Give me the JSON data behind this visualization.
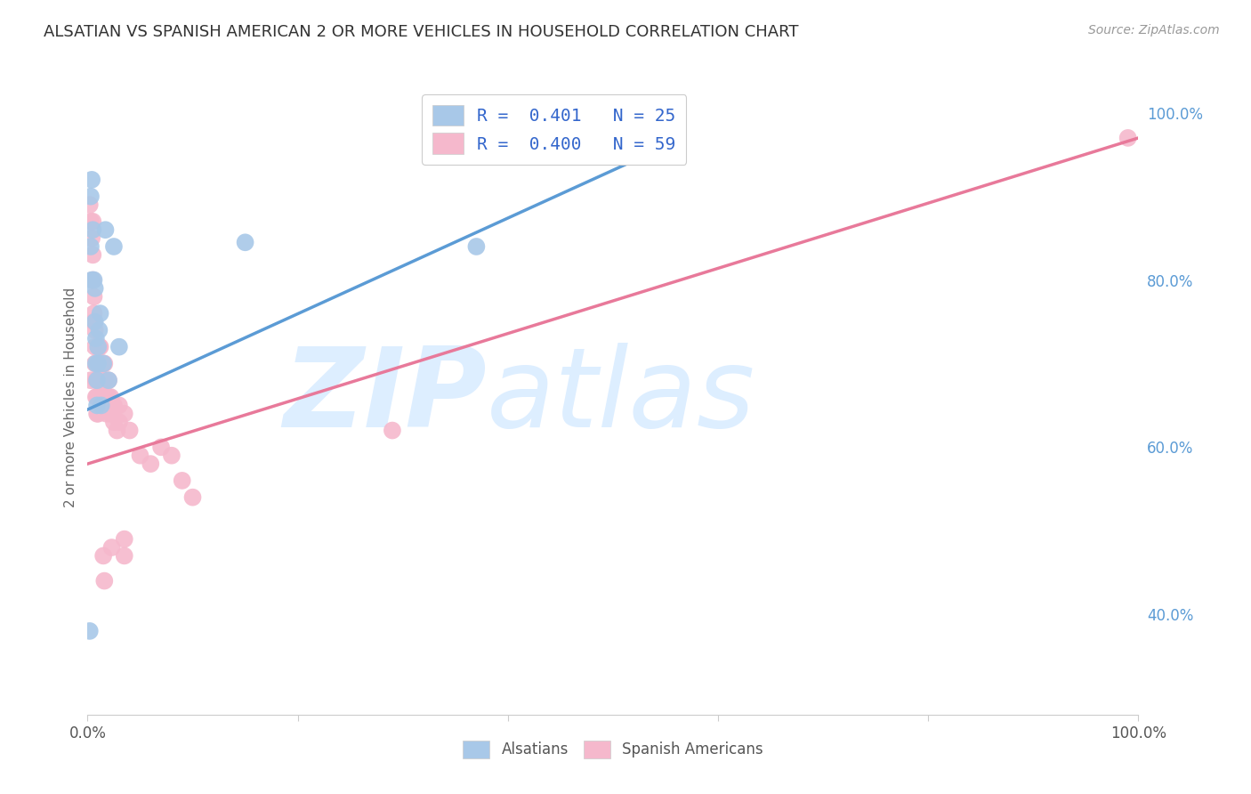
{
  "title": "ALSATIAN VS SPANISH AMERICAN 2 OR MORE VEHICLES IN HOUSEHOLD CORRELATION CHART",
  "source": "Source: ZipAtlas.com",
  "ylabel": "2 or more Vehicles in Household",
  "xlim": [
    0,
    1
  ],
  "ylim": [
    0.28,
    1.04
  ],
  "xticklabels": [
    "0.0%",
    "",
    "",
    "",
    "",
    "100.0%"
  ],
  "yticklabels_right": [
    "40.0%",
    "60.0%",
    "80.0%",
    "100.0%"
  ],
  "yticks_right": [
    0.4,
    0.6,
    0.8,
    1.0
  ],
  "legend_entries": [
    {
      "label": "R =  0.401   N = 25"
    },
    {
      "label": "R =  0.400   N = 59"
    }
  ],
  "legend_bottom": [
    "Alsatians",
    "Spanish Americans"
  ],
  "blue_color": "#5b9bd5",
  "pink_color": "#e8799a",
  "blue_scatter_color": "#a8c8e8",
  "pink_scatter_color": "#f5b8cc",
  "watermark_zip": "ZIP",
  "watermark_atlas": "atlas",
  "watermark_color": "#ddeeff",
  "grid_color": "#dddddd",
  "blue_scatter_x": [
    0.003,
    0.004,
    0.005,
    0.006,
    0.007,
    0.007,
    0.008,
    0.008,
    0.009,
    0.009,
    0.01,
    0.01,
    0.011,
    0.012,
    0.013,
    0.015,
    0.017,
    0.02,
    0.025,
    0.03,
    0.003,
    0.004,
    0.15,
    0.37,
    0.002
  ],
  "blue_scatter_y": [
    0.9,
    0.92,
    0.86,
    0.8,
    0.79,
    0.75,
    0.73,
    0.7,
    0.68,
    0.65,
    0.7,
    0.72,
    0.74,
    0.76,
    0.65,
    0.7,
    0.86,
    0.68,
    0.84,
    0.72,
    0.84,
    0.8,
    0.845,
    0.84,
    0.38
  ],
  "pink_scatter_x": [
    0.002,
    0.003,
    0.004,
    0.005,
    0.005,
    0.005,
    0.006,
    0.006,
    0.007,
    0.007,
    0.007,
    0.008,
    0.008,
    0.009,
    0.009,
    0.01,
    0.01,
    0.01,
    0.011,
    0.011,
    0.012,
    0.012,
    0.013,
    0.013,
    0.014,
    0.014,
    0.015,
    0.015,
    0.016,
    0.016,
    0.017,
    0.018,
    0.019,
    0.02,
    0.02,
    0.022,
    0.022,
    0.025,
    0.025,
    0.028,
    0.03,
    0.03,
    0.035,
    0.04,
    0.05,
    0.06,
    0.07,
    0.08,
    0.09,
    0.1,
    0.003,
    0.006,
    0.015,
    0.016,
    0.023,
    0.29,
    0.035,
    0.035,
    0.99
  ],
  "pink_scatter_y": [
    0.89,
    0.87,
    0.85,
    0.87,
    0.83,
    0.8,
    0.78,
    0.76,
    0.74,
    0.72,
    0.7,
    0.68,
    0.66,
    0.64,
    0.66,
    0.64,
    0.66,
    0.68,
    0.7,
    0.72,
    0.7,
    0.72,
    0.68,
    0.66,
    0.68,
    0.7,
    0.68,
    0.7,
    0.68,
    0.7,
    0.66,
    0.64,
    0.66,
    0.66,
    0.68,
    0.66,
    0.64,
    0.65,
    0.63,
    0.62,
    0.63,
    0.65,
    0.64,
    0.62,
    0.59,
    0.58,
    0.6,
    0.59,
    0.56,
    0.54,
    0.68,
    0.75,
    0.47,
    0.44,
    0.48,
    0.62,
    0.49,
    0.47,
    0.97
  ],
  "blue_line_x": [
    0.0,
    0.55
  ],
  "blue_line_y": [
    0.645,
    0.96
  ],
  "pink_line_x": [
    0.0,
    1.0
  ],
  "pink_line_y": [
    0.58,
    0.97
  ]
}
